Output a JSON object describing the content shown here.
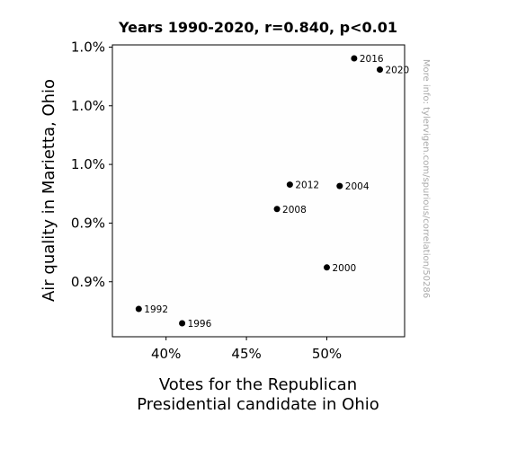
{
  "chart_data": {
    "type": "scatter",
    "title": "Years 1990-2020, r=0.840, p<0.01",
    "xlabel_lines": [
      "Votes for the Republican",
      "Presidential candidate in Ohio"
    ],
    "ylabel": "Air quality in Marietta, Ohio",
    "xlim": [
      37.5,
      54.0
    ],
    "ylim": [
      0.8823,
      0.9952
    ],
    "x_ticks": [
      {
        "value": 40,
        "label": "40%"
      },
      {
        "value": 45,
        "label": "45%"
      },
      {
        "value": 50,
        "label": "50%"
      }
    ],
    "y_ticks": [
      {
        "value": 0.9,
        "label": "0.9%"
      },
      {
        "value": 0.925,
        "label": "0.9%"
      },
      {
        "value": 0.95,
        "label": "1.0%"
      },
      {
        "value": 0.975,
        "label": "1.0%"
      },
      {
        "value": 1.0,
        "label": "1.0%"
      }
    ],
    "points": [
      {
        "label": "1992",
        "x": 38.3,
        "y": 0.8884
      },
      {
        "label": "1996",
        "x": 41.0,
        "y": 0.8823
      },
      {
        "label": "2000",
        "x": 50.0,
        "y": 0.9061
      },
      {
        "label": "2004",
        "x": 50.8,
        "y": 0.9408
      },
      {
        "label": "2008",
        "x": 46.9,
        "y": 0.931
      },
      {
        "label": "2012",
        "x": 47.7,
        "y": 0.9414
      },
      {
        "label": "2016",
        "x": 51.7,
        "y": 0.9952
      },
      {
        "label": "2020",
        "x": 53.3,
        "y": 0.9904
      }
    ],
    "grid": false,
    "legend": "none"
  },
  "watermark": "More info: tylervigen.com/spurious/correlation/50286",
  "colors": {
    "point": "#000000",
    "axes": "#000000",
    "watermark": "#aaaaaa"
  }
}
